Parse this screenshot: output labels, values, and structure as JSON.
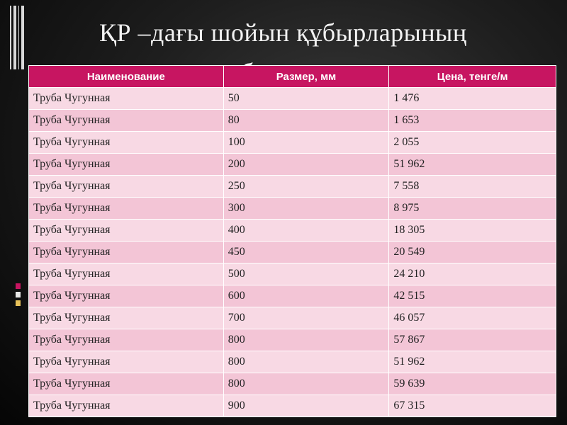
{
  "slide": {
    "title": "ҚР –дағы шойын құбырларының",
    "title_line2": "бағасы",
    "accent_colors": [
      "#c71561",
      "#f8d9e4",
      "#f3c5d6"
    ]
  },
  "table": {
    "headers": [
      "Наименование",
      "Размер, мм",
      "Цена, тенге/м"
    ],
    "rows": [
      [
        "Труба Чугунная",
        "50",
        "1 476"
      ],
      [
        "Труба Чугунная",
        "80",
        "1 653"
      ],
      [
        "Труба Чугунная",
        "100",
        "2 055"
      ],
      [
        "Труба Чугунная",
        "200",
        "51 962"
      ],
      [
        "Труба Чугунная",
        "250",
        "7 558"
      ],
      [
        "Труба Чугунная",
        "300",
        "8 975"
      ],
      [
        "Труба Чугунная",
        "400",
        "18 305"
      ],
      [
        "Труба Чугунная",
        "450",
        "20 549"
      ],
      [
        "Труба Чугунная",
        "500",
        "24 210"
      ],
      [
        "Труба Чугунная",
        "600",
        "42 515"
      ],
      [
        "Труба Чугунная",
        "700",
        "46 057"
      ],
      [
        "Труба Чугунная",
        "800",
        "57 867"
      ],
      [
        "Труба Чугунная",
        "800",
        "51 962"
      ],
      [
        "Труба Чугунная",
        "800",
        "59 639"
      ],
      [
        "Труба Чугунная",
        "900",
        "67 315"
      ]
    ]
  }
}
